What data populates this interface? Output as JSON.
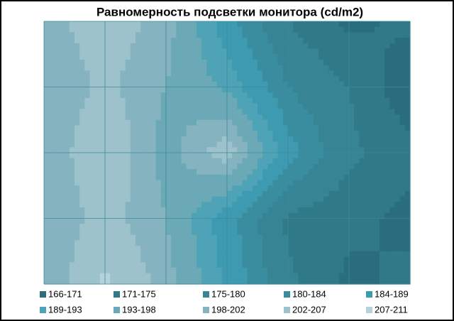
{
  "chart_data": {
    "type": "contour",
    "title": "Равномерность  подсветки монитора  (cd/m2)",
    "z": [
      [
        200,
        205,
        200,
        186,
        175,
        170,
        172
      ],
      [
        198,
        203,
        198,
        192,
        180,
        175,
        168
      ],
      [
        198,
        207,
        196,
        205,
        186,
        176,
        172
      ],
      [
        198,
        204,
        198,
        186,
        174,
        172,
        170
      ],
      [
        198,
        208,
        200,
        188,
        176,
        170,
        172
      ]
    ],
    "bands": [
      {
        "label": "166-171",
        "from": 166,
        "to": 171,
        "color": "#2a6d7c"
      },
      {
        "label": "171-175",
        "from": 171,
        "to": 175,
        "color": "#307988"
      },
      {
        "label": "175-180",
        "from": 175,
        "to": 180,
        "color": "#368494"
      },
      {
        "label": "180-184",
        "from": 180,
        "to": 184,
        "color": "#3a8d9f"
      },
      {
        "label": "184-189",
        "from": 184,
        "to": 189,
        "color": "#3e9ab0"
      },
      {
        "label": "189-193",
        "from": 189,
        "to": 193,
        "color": "#4fa3b7"
      },
      {
        "label": "193-198",
        "from": 193,
        "to": 198,
        "color": "#6ca9b7"
      },
      {
        "label": "198-202",
        "from": 198,
        "to": 202,
        "color": "#85b3bf"
      },
      {
        "label": "202-207",
        "from": 202,
        "to": 207,
        "color": "#9dc2cb"
      },
      {
        "label": "207-211",
        "from": 207,
        "to": 211,
        "color": "#b5d2d9"
      }
    ],
    "grid": true
  }
}
